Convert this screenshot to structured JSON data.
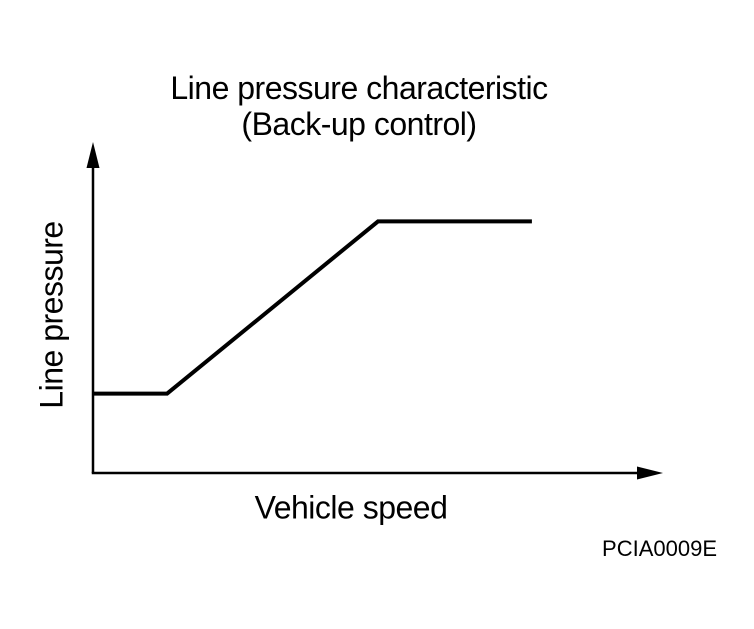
{
  "figure": {
    "title": "Line pressure characteristic",
    "subtitle": "(Back-up control)",
    "x_axis_label": "Vehicle speed",
    "y_axis_label": "Line pressure",
    "code": "PCIA0009E"
  },
  "chart_data": {
    "type": "line",
    "title": "Line pressure characteristic",
    "subtitle": "(Back-up control)",
    "xlabel": "Vehicle speed",
    "ylabel": "Line pressure",
    "figure_code": "PCIA0009E",
    "axes": {
      "ticks": "none",
      "tick_labels": "none",
      "grid": false,
      "x_range_relative": [
        0,
        1
      ],
      "y_range_relative": [
        0,
        1
      ],
      "style": "arrow-ended axes, no scale"
    },
    "line_color": "#000000",
    "series": [
      {
        "name": "line-pressure-vs-vehicle-speed",
        "description": "Line pressure stays constant at low speed, rises linearly with vehicle speed, then plateaus at a high constant value (back-up control characteristic).",
        "points_relative": [
          {
            "x": 0.0,
            "y": 0.24
          },
          {
            "x": 0.13,
            "y": 0.24
          },
          {
            "x": 0.5,
            "y": 0.76
          },
          {
            "x": 0.77,
            "y": 0.76
          }
        ]
      }
    ]
  }
}
